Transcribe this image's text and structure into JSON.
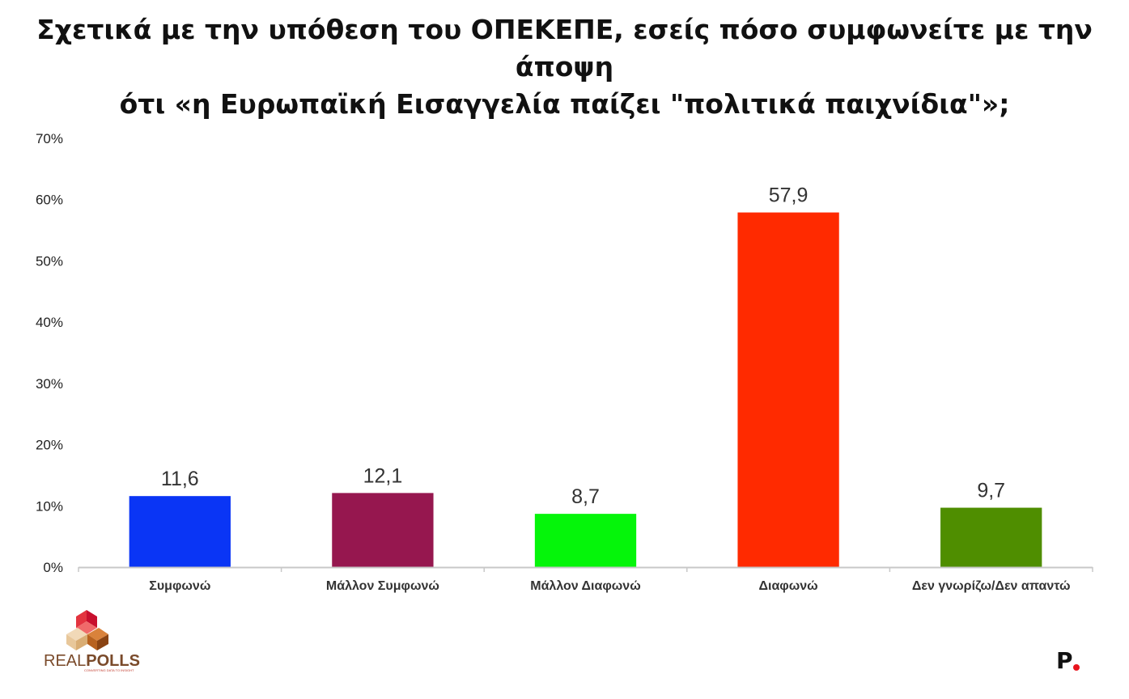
{
  "chart_data": {
    "type": "bar",
    "title": "Σχετικά με την υπόθεση του ΟΠΕΚΕΠΕ, εσείς πόσο συμφωνείτε με την άποψη ότι «η Ευρωπαϊκή Εισαγγελία παίζει \"πολιτικά παιχνίδια\"»;",
    "title_lines": [
      "Σχετικά με την υπόθεση του ΟΠΕΚΕΠΕ, εσείς πόσο συμφωνείτε με την άποψη",
      "ότι «η Ευρωπαϊκή Εισαγγελία παίζει \"πολιτικά παιχνίδια\"»;"
    ],
    "categories": [
      "Συμφωνώ",
      "Μάλλον Συμφωνώ",
      "Μάλλον Διαφωνώ",
      "Διαφωνώ",
      "Δεν γνωρίζω/Δεν απαντώ"
    ],
    "values": [
      11.6,
      12.1,
      8.7,
      57.9,
      9.7
    ],
    "value_labels": [
      "11,6",
      "12,1",
      "8,7",
      "57,9",
      "9,7"
    ],
    "colors": [
      "#0a35f5",
      "#96174f",
      "#05f50a",
      "#ff2a00",
      "#4f8e00"
    ],
    "ylim": [
      0,
      70
    ],
    "yticks": [
      0,
      10,
      20,
      30,
      40,
      50,
      60,
      70
    ],
    "ytick_labels": [
      "0%",
      "10%",
      "20%",
      "30%",
      "40%",
      "50%",
      "60%",
      "70%"
    ],
    "xlabel": "",
    "ylabel": "",
    "grid": false,
    "legend": "none"
  },
  "branding": {
    "logo_text_light": "REAL",
    "logo_text_bold": "POLLS",
    "logo_tagline": "CONVERTING DATA TO INSIGHT",
    "corner_mark": "P"
  }
}
